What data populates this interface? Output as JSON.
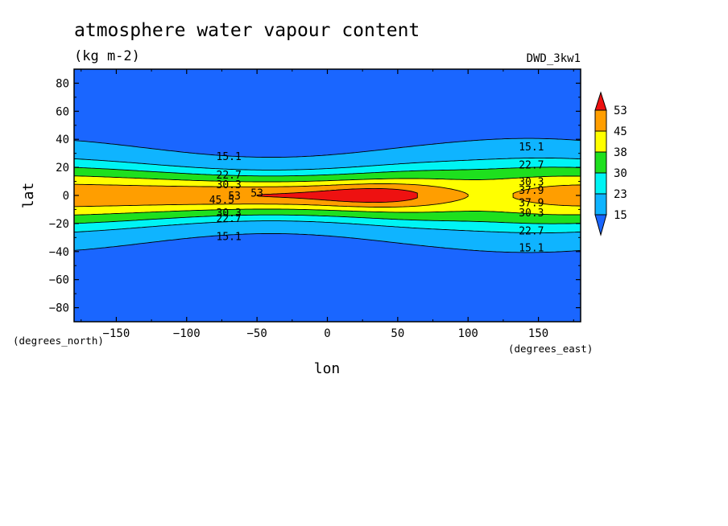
{
  "chart_data": {
    "type": "heatmap",
    "subtype": "filled-contour",
    "title": "atmosphere water vapour content",
    "subtitle": "(kg m-2)",
    "model_label": "DWD_3kw1",
    "xlabel": "lon",
    "ylabel": "lat",
    "x_units": "(degrees_east)",
    "y_units": "(degrees_north)",
    "xlim": [
      -180,
      180
    ],
    "ylim": [
      -90,
      90
    ],
    "x_ticks": [
      -150,
      -100,
      -50,
      0,
      50,
      100,
      150
    ],
    "y_ticks": [
      80,
      60,
      40,
      20,
      0,
      -20,
      -40,
      -60,
      -80
    ],
    "grid": false,
    "legend_position": "right",
    "colorbar": {
      "levels": [
        15,
        23,
        30,
        38,
        45,
        53
      ],
      "colors": [
        "#1a66ff",
        "#0fb4ff",
        "#00f4f4",
        "#1ee01e",
        "#ffff00",
        "#ff9e00",
        "#ee1111"
      ]
    },
    "contour_labels": [
      {
        "text": "15.1",
        "x": -70,
        "y": 28
      },
      {
        "text": "15.1",
        "x": -70,
        "y": -29
      },
      {
        "text": "15.1",
        "x": 145,
        "y": 35
      },
      {
        "text": "15.1",
        "x": 145,
        "y": -37
      },
      {
        "text": "22.7",
        "x": -70,
        "y": 15
      },
      {
        "text": "22.7",
        "x": -70,
        "y": -16
      },
      {
        "text": "22.7",
        "x": 145,
        "y": 22
      },
      {
        "text": "22.7",
        "x": 145,
        "y": -25
      },
      {
        "text": "30.3",
        "x": -70,
        "y": 8
      },
      {
        "text": "30.3",
        "x": -70,
        "y": -12
      },
      {
        "text": "30.3",
        "x": 145,
        "y": 10
      },
      {
        "text": "30.3",
        "x": 145,
        "y": -12
      },
      {
        "text": "37.9",
        "x": 145,
        "y": 4
      },
      {
        "text": "37.9",
        "x": 145,
        "y": -5
      },
      {
        "text": "45.5",
        "x": -75,
        "y": -3
      },
      {
        "text": "53",
        "x": -66,
        "y": 0
      },
      {
        "text": "53",
        "x": -50,
        "y": 2
      }
    ]
  }
}
